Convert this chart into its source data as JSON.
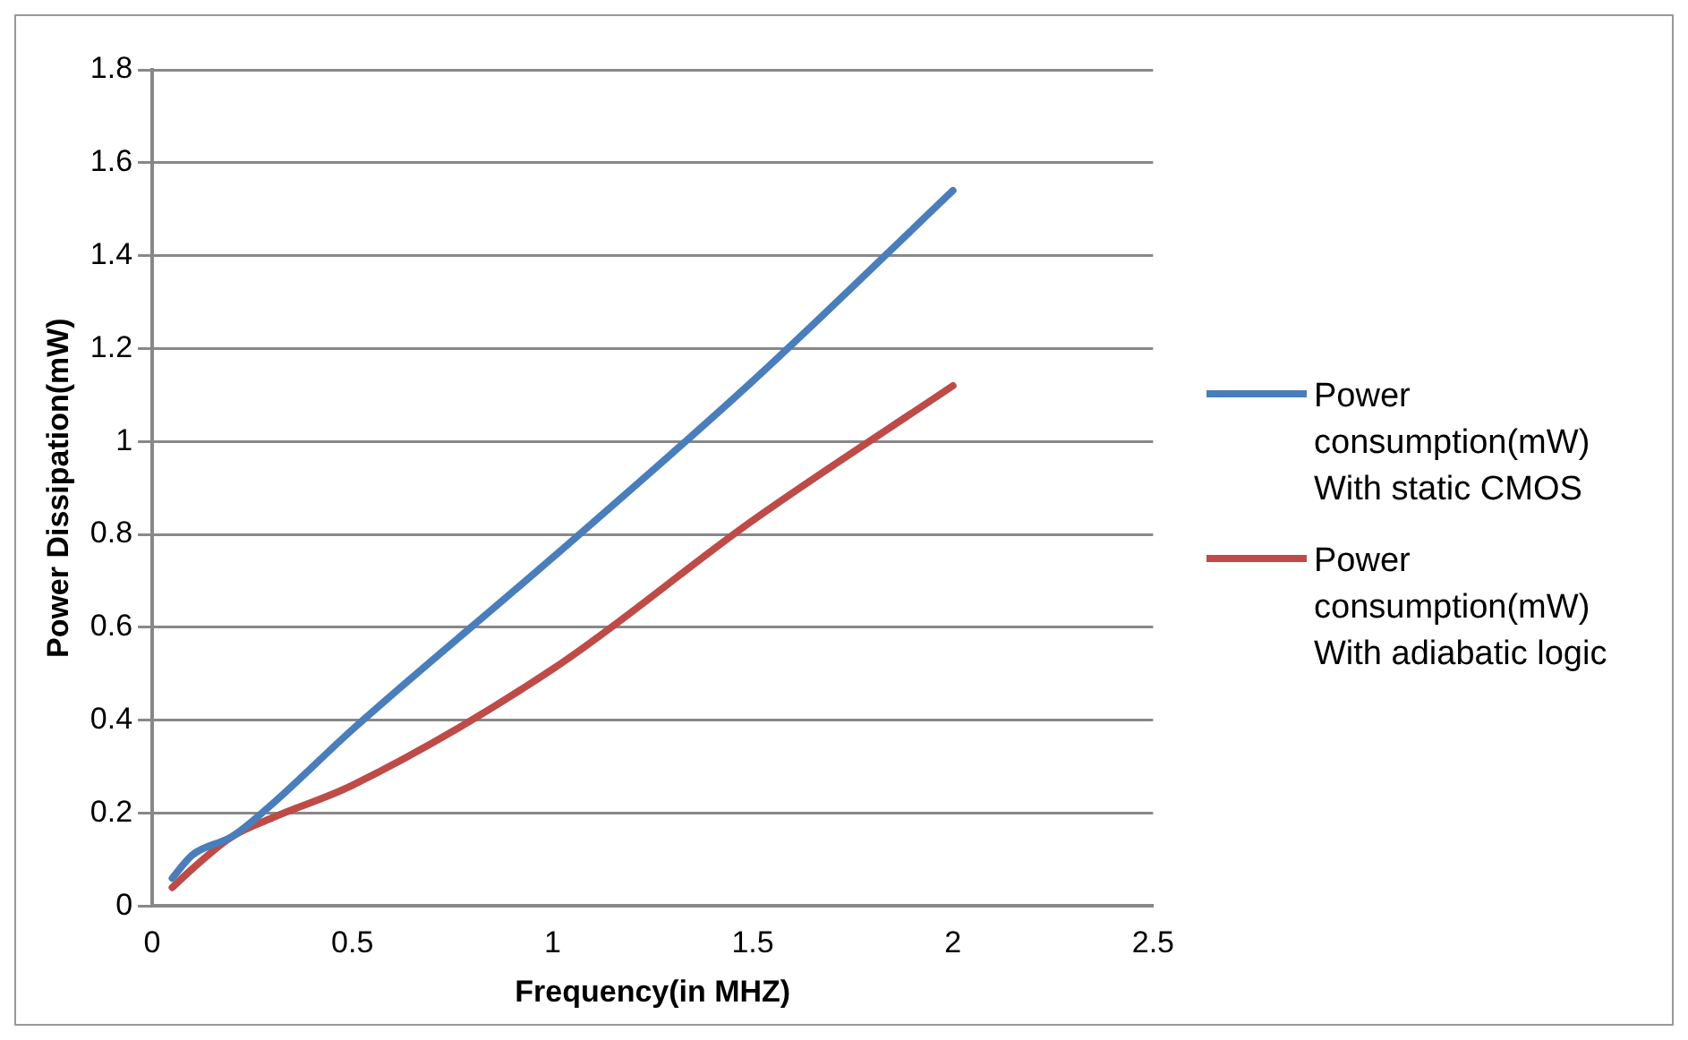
{
  "chart_data": {
    "type": "line",
    "xlabel": "Frequency(in MHZ)",
    "ylabel": "Power Dissipation(mW)",
    "xlim": [
      0,
      2.5
    ],
    "xticks": [
      0,
      0.5,
      1,
      1.5,
      2,
      2.5
    ],
    "ylim": [
      0,
      1.8
    ],
    "yticks": [
      0,
      0.2,
      0.4,
      0.6,
      0.8,
      1,
      1.2,
      1.4,
      1.6,
      1.8
    ],
    "grid": "y",
    "legend": "right",
    "marker": "none",
    "x": [
      0.05,
      0.1,
      0.2,
      0.3,
      0.5,
      1,
      1.5,
      2
    ],
    "series": [
      {
        "name": "Power consumption(mW) With static CMOS",
        "color": "#4a7ebb",
        "values": [
          0.06,
          0.11,
          0.15,
          0.22,
          0.38,
          0.75,
          1.13,
          1.54
        ]
      },
      {
        "name": "Power consumption(mW) With adiabatic logic",
        "color": "#be4b48",
        "values": [
          0.04,
          0.08,
          0.15,
          0.19,
          0.26,
          0.51,
          0.83,
          1.12
        ]
      }
    ]
  }
}
